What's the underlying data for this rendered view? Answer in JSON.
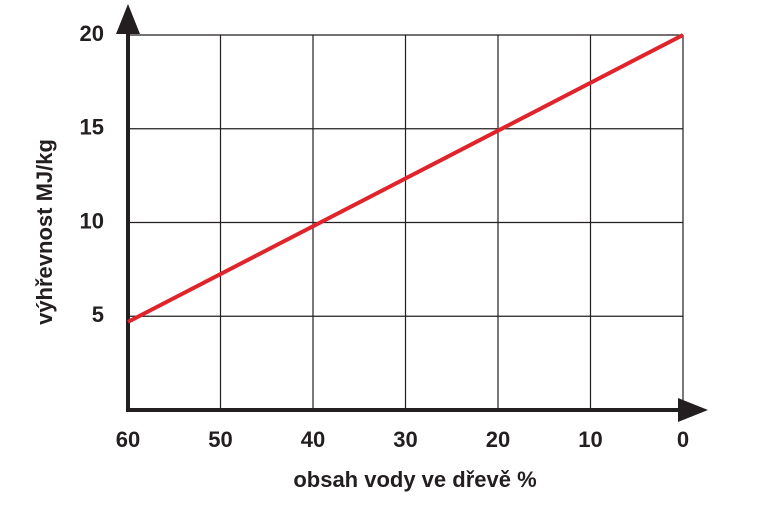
{
  "chart_data": {
    "type": "line",
    "x_label": "obsah vody ve dřevě %",
    "y_label": "výhřevnost MJ/kg",
    "x": [
      60,
      0
    ],
    "series": [
      {
        "color": "#e0242b",
        "values": [
          4.7,
          20
        ]
      }
    ],
    "xlim": [
      60,
      0
    ],
    "xticks": [
      60,
      50,
      40,
      30,
      20,
      10,
      0
    ],
    "ylim": [
      0,
      20
    ],
    "yticks": [
      5,
      10,
      15,
      20
    ],
    "grid": true
  }
}
